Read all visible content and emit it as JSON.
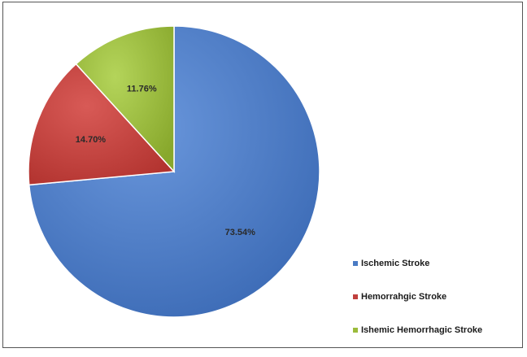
{
  "chart_data": {
    "type": "pie",
    "title": "",
    "categories": [
      "Ischemic Stroke",
      "Hemorrahgic Stroke",
      "Ishemic Hemorrhagic Stroke"
    ],
    "values": [
      73.54,
      14.7,
      11.76
    ],
    "labels": [
      "73.54%",
      "14.70%",
      "11.76%"
    ],
    "colors": [
      "#4A7BC4",
      "#C0403D",
      "#9BBB3B"
    ],
    "legend_position": "bottom-right",
    "start_angle": "12 o'clock",
    "direction": "clockwise"
  }
}
